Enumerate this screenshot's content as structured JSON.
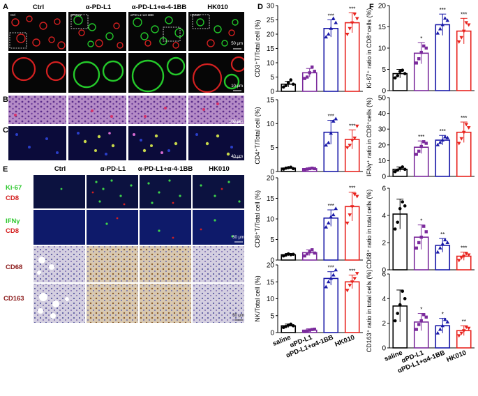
{
  "panels": {
    "A": "A",
    "B": "B",
    "C": "C",
    "D": "D",
    "E": "E",
    "F": "F"
  },
  "groups": [
    "Ctrl",
    "α-PD-L1",
    "α-PD-L1+α-4-1BB",
    "HK010"
  ],
  "inset_labels": [
    "Ctrl",
    "αPD-L1",
    "αPD-L1+α4-1BB",
    "HK010"
  ],
  "scale_bars": {
    "a_top": "50 μm",
    "a_bottom": "10 μm",
    "b": "100 μm",
    "c": "40 μm",
    "e_ifn": "50 μm",
    "e_bottom": "50 μm"
  },
  "e_rows": {
    "ki67": "Ki-67",
    "cd8_1": "CD8",
    "ifng": "IFNγ",
    "cd8_2": "CD8",
    "cd68": "CD68",
    "cd163": "CD163"
  },
  "x_categories": [
    "saline",
    "αPD-L1",
    "αPD-L1+α4-1BB",
    "HK010"
  ],
  "colors": {
    "saline": "#000000",
    "aPDL1": "#7b2a9c",
    "combo": "#1a1aa8",
    "hk010": "#e8231e"
  },
  "chart_data": [
    {
      "type": "bar",
      "panel": "D",
      "ylabel": "CD3⁺T/Total cell (%)",
      "ylim": [
        0,
        30
      ],
      "ticks": [
        0,
        5,
        10,
        15,
        20,
        25,
        30
      ],
      "categories": [
        "saline",
        "αPD-L1",
        "αPD-L1+α4-1BB",
        "HK010"
      ],
      "values": [
        2.5,
        6.5,
        22,
        24
      ],
      "errors": [
        1,
        1.5,
        3,
        3.5
      ],
      "sig": [
        "",
        "",
        "***",
        "***"
      ],
      "points": [
        [
          1.5,
          2,
          3,
          4,
          2.5
        ],
        [
          4.5,
          5,
          6.5,
          8.5,
          7
        ],
        [
          19,
          20,
          22,
          25.5,
          24
        ],
        [
          20,
          22,
          24,
          27,
          25.5
        ]
      ]
    },
    {
      "type": "bar",
      "panel": "D",
      "ylabel": "CD4⁺T/Total cell (%)",
      "ylim": [
        0,
        15
      ],
      "ticks": [
        0,
        5,
        10,
        15
      ],
      "categories": [
        "saline",
        "αPD-L1",
        "αPD-L1+α4-1BB",
        "HK010"
      ],
      "values": [
        0.7,
        0.6,
        8.2,
        6.7
      ],
      "errors": [
        0.2,
        0.15,
        2.5,
        2
      ],
      "sig": [
        "",
        "",
        "***",
        "***"
      ],
      "points": [
        [
          0.5,
          0.7,
          0.8,
          0.9,
          0.6
        ],
        [
          0.4,
          0.5,
          0.6,
          0.7,
          0.6
        ],
        [
          5.5,
          6,
          8,
          10.5,
          11
        ],
        [
          5,
          5.5,
          6.5,
          7,
          9.5
        ]
      ]
    },
    {
      "type": "bar",
      "panel": "D",
      "ylabel": "CD8⁺T/Total cell (%)",
      "ylim": [
        0,
        20
      ],
      "ticks": [
        0,
        5,
        10,
        15,
        20
      ],
      "categories": [
        "saline",
        "αPD-L1",
        "αPD-L1+α4-1BB",
        "HK010"
      ],
      "values": [
        1.3,
        1.8,
        10.2,
        13
      ],
      "errors": [
        0.3,
        0.7,
        2,
        3.5
      ],
      "sig": [
        "",
        "",
        "***",
        "***"
      ],
      "points": [
        [
          1,
          1.2,
          1.5,
          1.3,
          1.4
        ],
        [
          1,
          1.5,
          2,
          2.5,
          1.7
        ],
        [
          8,
          9,
          10.5,
          11,
          12.5
        ],
        [
          9,
          11,
          13,
          16,
          15.5
        ]
      ]
    },
    {
      "type": "bar",
      "panel": "D",
      "ylabel": "NK/Total cell (%)",
      "ylim": [
        0,
        20
      ],
      "ticks": [
        0,
        5,
        10,
        15,
        20
      ],
      "categories": [
        "saline",
        "αPD-L1",
        "αPD-L1+α4-1BB",
        "HK010"
      ],
      "values": [
        2,
        0.7,
        16,
        15
      ],
      "errors": [
        0.5,
        0.4,
        2,
        2
      ],
      "sig": [
        "",
        "",
        "***",
        "***"
      ],
      "points": [
        [
          1.5,
          1.8,
          2.2,
          2.5,
          2
        ],
        [
          0.3,
          0.5,
          0.7,
          0.9,
          1
        ],
        [
          13.5,
          15,
          16,
          17,
          18.5
        ],
        [
          12.5,
          14,
          15,
          16,
          17.5
        ]
      ]
    },
    {
      "type": "bar",
      "panel": "F",
      "ylabel": "Ki-67⁺ ratio in CD8⁺cells (%)",
      "ylim": [
        0,
        20
      ],
      "ticks": [
        0,
        5,
        10,
        15,
        20
      ],
      "categories": [
        "saline",
        "αPD-L1",
        "αPD-L1+α4-1BB",
        "HK010"
      ],
      "values": [
        4,
        8.8,
        15.5,
        14
      ],
      "errors": [
        1,
        2.5,
        2.5,
        3
      ],
      "sig": [
        "",
        "*",
        "***",
        "***"
      ],
      "points": [
        [
          3,
          3.5,
          4.5,
          4.8,
          4
        ],
        [
          6.5,
          7.5,
          9,
          10.5,
          10
        ],
        [
          13.5,
          14.5,
          15.5,
          17,
          16.5
        ],
        [
          11.5,
          12.5,
          14,
          16,
          15.5
        ]
      ]
    },
    {
      "type": "bar",
      "panel": "F",
      "ylabel": "IFNγ⁺ ratio in CD8⁺cells (%)",
      "ylim": [
        0,
        50
      ],
      "ticks": [
        0,
        10,
        20,
        30,
        40,
        50
      ],
      "categories": [
        "saline",
        "αPD-L1",
        "αPD-L1+α4-1BB",
        "HK010"
      ],
      "values": [
        4.5,
        18.5,
        23,
        28
      ],
      "errors": [
        1.5,
        4,
        3,
        6.5
      ],
      "sig": [
        "",
        "***",
        "***",
        "***"
      ],
      "points": [
        [
          3,
          4,
          5,
          6,
          4.5
        ],
        [
          14,
          16,
          19,
          22,
          21
        ],
        [
          20,
          21.5,
          23,
          25,
          24.5
        ],
        [
          21,
          24,
          28,
          33,
          31
        ]
      ]
    },
    {
      "type": "bar",
      "panel": "F",
      "ylabel": "CD68⁺ ratio in total cells (%)",
      "ylim": [
        0,
        6
      ],
      "ticks": [
        0,
        2,
        4,
        6
      ],
      "categories": [
        "saline",
        "αPD-L1",
        "αPD-L1+α4-1BB",
        "HK010"
      ],
      "values": [
        4.1,
        2.4,
        1.8,
        1
      ],
      "errors": [
        1.1,
        0.9,
        0.5,
        0.3
      ],
      "sig": [
        "",
        "*",
        "**",
        "***"
      ],
      "points": [
        [
          3,
          3.5,
          4.5,
          5,
          4.7
        ],
        [
          1.6,
          2,
          2.4,
          3.2,
          2.8
        ],
        [
          1.3,
          1.6,
          1.9,
          2.2,
          2
        ],
        [
          0.7,
          0.9,
          1,
          1.2,
          1.1
        ]
      ]
    },
    {
      "type": "bar",
      "panel": "F",
      "ylabel": "CD163⁺ ratio in total cells (%)",
      "ylim": [
        0,
        6
      ],
      "ticks": [
        0,
        2,
        4,
        6
      ],
      "categories": [
        "saline",
        "αPD-L1",
        "αPD-L1+α4-1BB",
        "HK010"
      ],
      "values": [
        3.4,
        2.1,
        1.8,
        1.4
      ],
      "errors": [
        1.3,
        0.7,
        0.6,
        0.4
      ],
      "sig": [
        "",
        "*",
        "*",
        "**"
      ],
      "points": [
        [
          2.2,
          2.8,
          3.5,
          4.6,
          4
        ],
        [
          1.5,
          1.9,
          2.2,
          2.7,
          2.5
        ],
        [
          1.2,
          1.5,
          1.8,
          2.3,
          2.1
        ],
        [
          1,
          1.2,
          1.4,
          1.7,
          1.6
        ]
      ]
    }
  ]
}
